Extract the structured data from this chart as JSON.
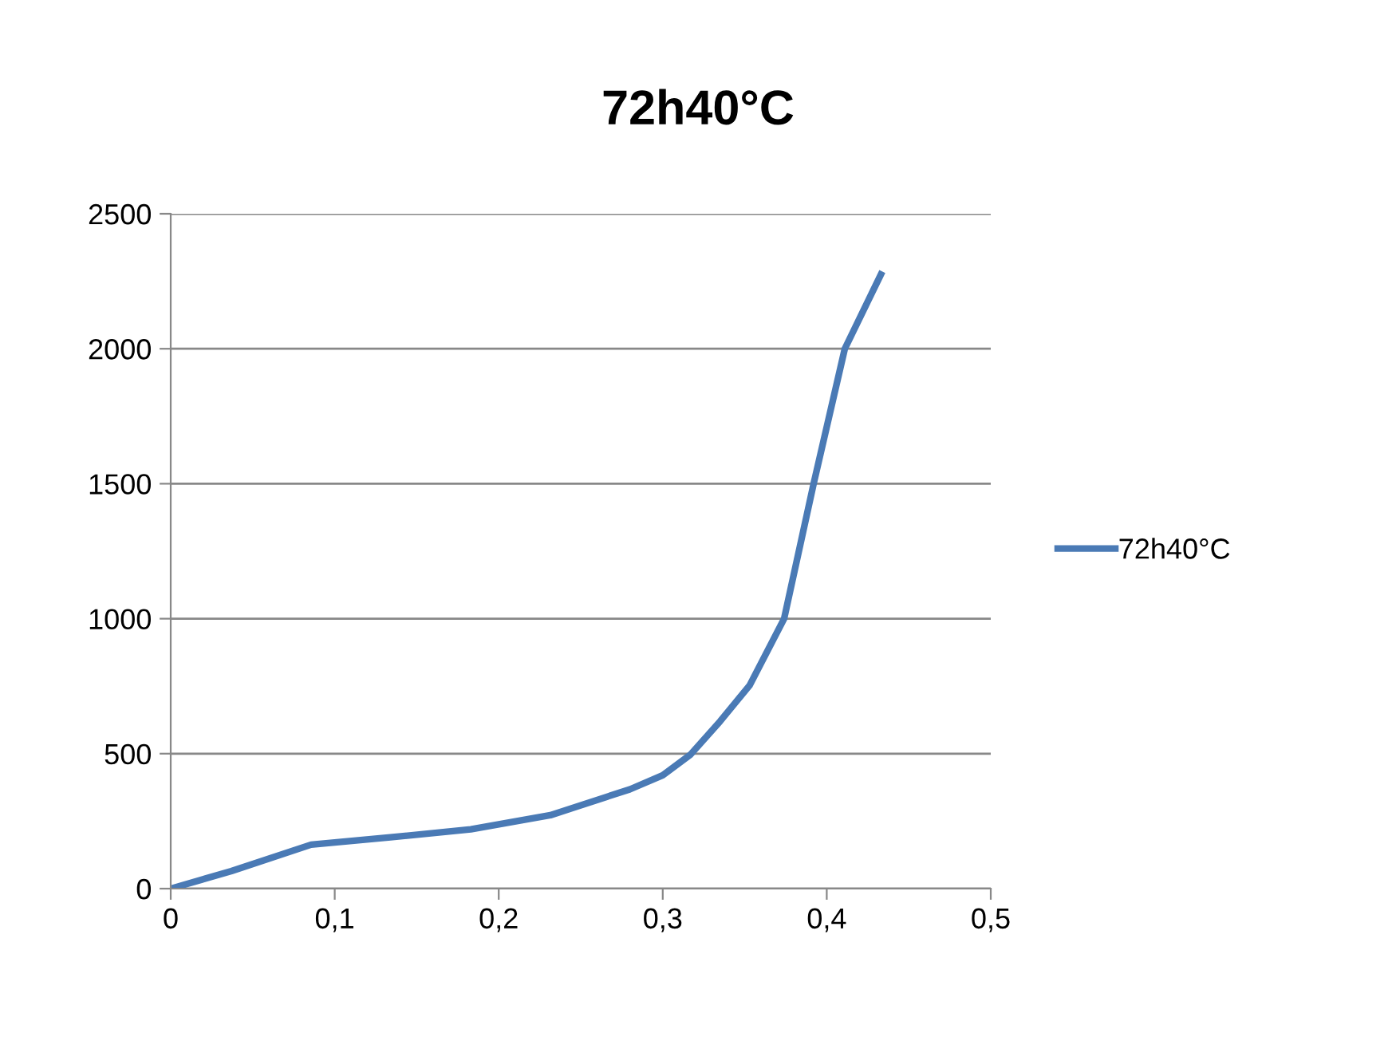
{
  "chart_data": {
    "type": "line",
    "title": "72h40°C",
    "x": [
      0,
      0.037,
      0.0856,
      0.134,
      0.183,
      0.2315,
      0.28,
      0.3,
      0.317,
      0.335,
      0.353,
      0.374,
      0.392,
      0.411,
      0.433
    ],
    "series": [
      {
        "name": "72h40°C",
        "color": "#4a7ab5",
        "values": [
          0,
          65,
          163,
          190,
          220,
          272,
          368,
          420,
          497,
          620,
          753,
          1000,
          1500,
          2000,
          2275
        ]
      }
    ],
    "xlim": [
      0,
      0.5
    ],
    "xticks": [
      {
        "value": 0,
        "label": "0"
      },
      {
        "value": 0.1,
        "label": "0,1"
      },
      {
        "value": 0.2,
        "label": "0,2"
      },
      {
        "value": 0.3,
        "label": "0,3"
      },
      {
        "value": 0.4,
        "label": "0,4"
      },
      {
        "value": 0.5,
        "label": "0,5"
      }
    ],
    "ylim": [
      0,
      2500
    ],
    "yticks": [
      0,
      500,
      1000,
      1500,
      2000,
      2500
    ],
    "grid": "y",
    "legend": "right",
    "marker": "none",
    "line_style": "solid"
  }
}
